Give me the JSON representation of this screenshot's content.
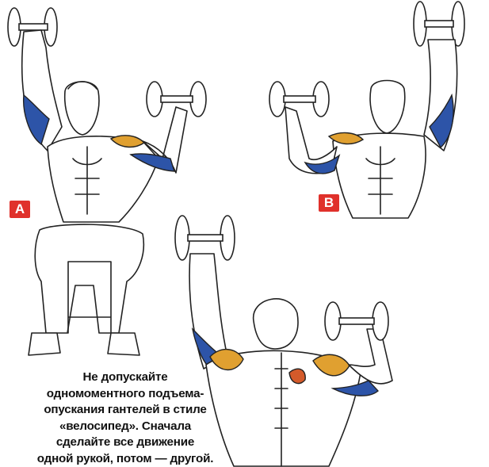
{
  "labels": {
    "variant_a": "A",
    "variant_b": "B"
  },
  "caption": {
    "lines": [
      "Не допускайте",
      "одномоментного подъема-",
      "опускания гантелей в стиле",
      "«велосипед». Сначала",
      "сделайте все движение",
      "одной рукой, потом — другой."
    ]
  },
  "colors": {
    "badge": "#e0312b",
    "front_deltoid": "#2d54a8",
    "side_deltoid": "#e0a030",
    "rear_deltoid": "#d45a2a"
  },
  "icons": [
    "dumbbell-icon"
  ]
}
